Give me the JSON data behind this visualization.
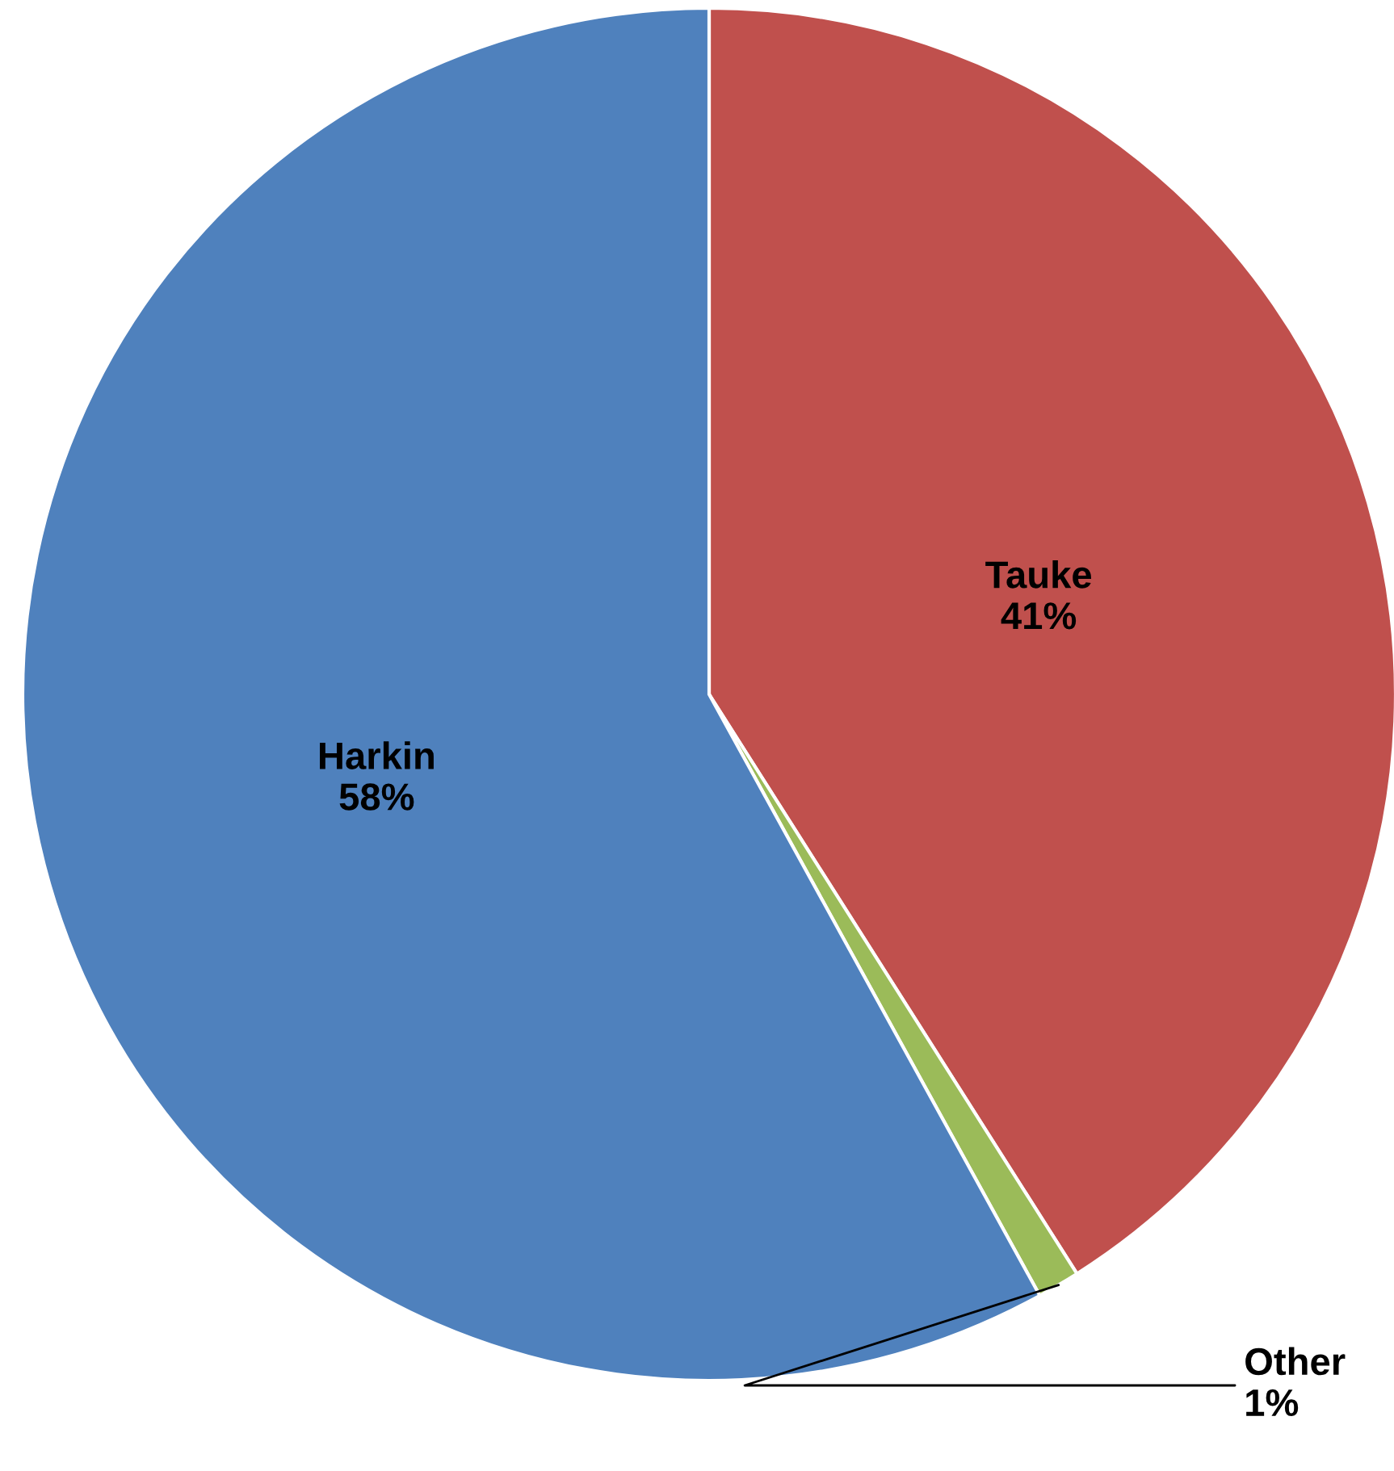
{
  "chart_data": {
    "type": "pie",
    "categories": [
      "Tauke",
      "Other",
      "Harkin"
    ],
    "values": [
      41,
      1,
      58
    ],
    "colors": [
      "#c0504d",
      "#9bbb59",
      "#4f81bd"
    ],
    "value_labels": [
      "41%",
      "1%",
      "58%"
    ]
  }
}
